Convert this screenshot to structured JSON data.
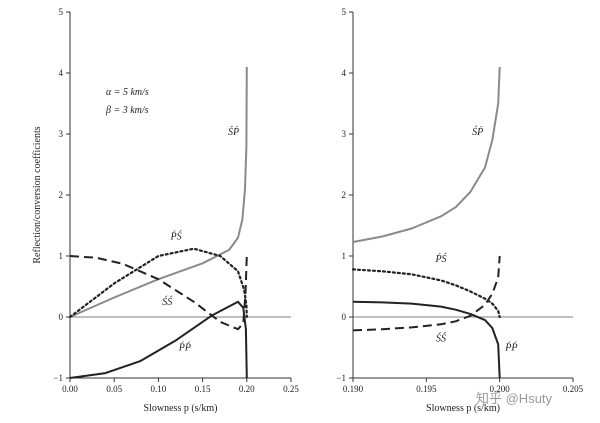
{
  "watermark": "知乎 @Hsuty",
  "chart_data": [
    {
      "type": "line",
      "xlabel": "Slowness p (s/km)",
      "ylabel": "Reflection/conversion coefficients",
      "xlim": [
        0,
        0.25
      ],
      "ylim": [
        -1,
        5
      ],
      "x_ticks": [
        "0.00",
        "0.05",
        "0.10",
        "0.15",
        "0.20",
        "0.25"
      ],
      "y_ticks": [
        "−1",
        "0",
        "1",
        "2",
        "3",
        "4",
        "5"
      ],
      "zero_line": true,
      "annotations": [
        "α = 5 km/s",
        "β = 3 km/s"
      ],
      "series": [
        {
          "name": "ŚṔ",
          "color": "#8a8a8a",
          "dash": "solid",
          "x": [
            0,
            0.05,
            0.1,
            0.15,
            0.18,
            0.19,
            0.195,
            0.198,
            0.1995,
            0.2
          ],
          "y": [
            0,
            0.32,
            0.62,
            0.88,
            1.1,
            1.3,
            1.6,
            2.1,
            2.8,
            4.1
          ]
        },
        {
          "name": "ṔŚ",
          "color": "#222222",
          "dash": "dotted",
          "x": [
            0,
            0.05,
            0.1,
            0.14,
            0.17,
            0.19,
            0.197,
            0.1995,
            0.2
          ],
          "y": [
            0,
            0.55,
            1.0,
            1.12,
            1.0,
            0.75,
            0.45,
            0.2,
            0
          ]
        },
        {
          "name": "ŚŚ",
          "color": "#222222",
          "dash": "dashed",
          "x": [
            0,
            0.03,
            0.06,
            0.1,
            0.14,
            0.17,
            0.19,
            0.196,
            0.1985,
            0.2
          ],
          "y": [
            1.0,
            0.97,
            0.87,
            0.62,
            0.25,
            -0.08,
            -0.2,
            -0.1,
            0.4,
            1.0
          ]
        },
        {
          "name": "ṔṔ",
          "color": "#222222",
          "dash": "solid",
          "x": [
            0,
            0.04,
            0.08,
            0.12,
            0.16,
            0.19,
            0.196,
            0.199,
            0.2
          ],
          "y": [
            -1.0,
            -0.92,
            -0.72,
            -0.38,
            0.02,
            0.25,
            0.15,
            -0.2,
            -1.0
          ]
        }
      ],
      "labels": [
        {
          "text": "ŚṔ",
          "series": 0,
          "at": [
            0.185,
            2.98
          ]
        },
        {
          "text": "ṔŚ",
          "series": 1,
          "at": [
            0.12,
            1.27
          ]
        },
        {
          "text": "ŚŚ",
          "series": 2,
          "at": [
            0.11,
            0.2
          ]
        },
        {
          "text": "ṔṔ",
          "series": 3,
          "at": [
            0.13,
            -0.55
          ]
        }
      ]
    },
    {
      "type": "line",
      "xlabel": "Slowness p (s/km)",
      "ylabel": "",
      "xlim": [
        0.19,
        0.205
      ],
      "ylim": [
        -1,
        5
      ],
      "x_ticks": [
        "0.190",
        "0.195",
        "0.200",
        "0.205"
      ],
      "y_ticks": [
        "−1",
        "0",
        "1",
        "2",
        "3",
        "4",
        "5"
      ],
      "zero_line": true,
      "series": [
        {
          "name": "ŚṔ",
          "color": "#8a8a8a",
          "dash": "solid",
          "x": [
            0.19,
            0.192,
            0.194,
            0.196,
            0.197,
            0.198,
            0.199,
            0.1995,
            0.1999,
            0.2
          ],
          "y": [
            1.23,
            1.32,
            1.45,
            1.65,
            1.8,
            2.05,
            2.45,
            2.9,
            3.5,
            4.1
          ]
        },
        {
          "name": "ṔŚ",
          "color": "#222222",
          "dash": "dotted",
          "x": [
            0.19,
            0.192,
            0.194,
            0.196,
            0.197,
            0.198,
            0.199,
            0.1995,
            0.1999,
            0.2
          ],
          "y": [
            0.78,
            0.75,
            0.7,
            0.6,
            0.52,
            0.42,
            0.3,
            0.22,
            0.1,
            0
          ]
        },
        {
          "name": "ŚŚ",
          "color": "#222222",
          "dash": "dashed",
          "x": [
            0.19,
            0.192,
            0.194,
            0.196,
            0.197,
            0.198,
            0.199,
            0.1995,
            0.1999,
            0.2
          ],
          "y": [
            -0.22,
            -0.2,
            -0.17,
            -0.12,
            -0.07,
            0.02,
            0.2,
            0.38,
            0.65,
            1.0
          ]
        },
        {
          "name": "ṔṔ",
          "color": "#222222",
          "dash": "solid",
          "x": [
            0.19,
            0.192,
            0.194,
            0.196,
            0.197,
            0.198,
            0.199,
            0.1995,
            0.1999,
            0.2
          ],
          "y": [
            0.25,
            0.24,
            0.22,
            0.17,
            0.12,
            0.05,
            -0.05,
            -0.18,
            -0.45,
            -1.0
          ]
        }
      ],
      "labels": [
        {
          "text": "ŚṔ",
          "series": 0,
          "at": [
            0.1985,
            2.98
          ]
        },
        {
          "text": "ṔŚ",
          "series": 1,
          "at": [
            0.196,
            0.9
          ]
        },
        {
          "text": "ŚŚ",
          "series": 2,
          "at": [
            0.196,
            -0.4
          ]
        },
        {
          "text": "ṔṔ",
          "series": 3,
          "at": [
            0.2008,
            -0.55
          ]
        }
      ]
    }
  ]
}
